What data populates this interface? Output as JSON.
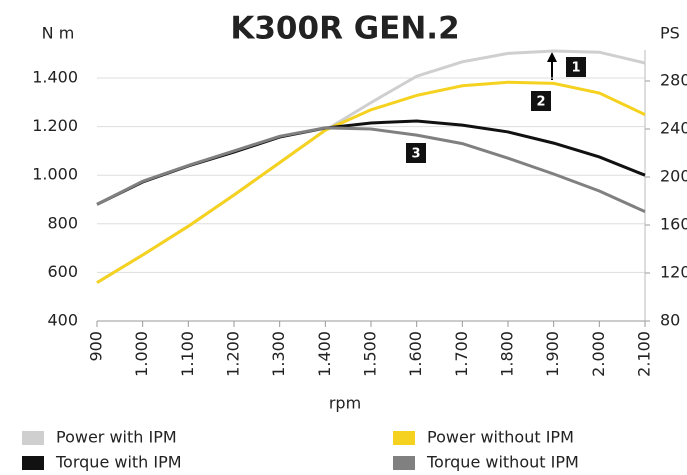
{
  "chart_data": {
    "type": "line",
    "title": "K300R GEN.2",
    "ylabel": "N m",
    "y2label": "PS",
    "xlabel": "rpm",
    "x": [
      900,
      1000,
      1100,
      1200,
      1300,
      1400,
      1500,
      1600,
      1700,
      1800,
      1900,
      2000,
      2100
    ],
    "xlim": [
      900,
      2100
    ],
    "xticks": [
      900,
      {
        "value": 1000,
        "label": "1.000"
      },
      {
        "value": 1100,
        "label": "1.100"
      },
      {
        "value": 1200,
        "label": "1.200"
      },
      {
        "value": 1300,
        "label": "1.300"
      },
      {
        "value": 1400,
        "label": "1.400"
      },
      {
        "value": 1500,
        "label": "1.500"
      },
      {
        "value": 1600,
        "label": "1.600"
      },
      {
        "value": 1700,
        "label": "1.700"
      },
      {
        "value": 1800,
        "label": "1.800"
      },
      {
        "value": 1900,
        "label": "1.900"
      },
      {
        "value": 2000,
        "label": "2.000"
      },
      {
        "value": 2100,
        "label": "2.100"
      }
    ],
    "ylim": [
      400,
      1550
    ],
    "yticks": [
      400,
      600,
      800,
      {
        "value": 1000,
        "label": "1.000"
      },
      {
        "value": 1200,
        "label": "1.200"
      },
      {
        "value": 1400,
        "label": "1.400"
      }
    ],
    "y2lim": [
      80,
      310
    ],
    "y2ticks": [
      80,
      120,
      160,
      200,
      240,
      280
    ],
    "grid": true,
    "series": [
      {
        "name": "Power with IPM",
        "color": "#cfcfcf",
        "axis": "y2",
        "values": [
          112,
          135,
          159,
          185,
          212,
          239,
          262,
          284,
          296,
          303,
          305,
          304,
          295
        ]
      },
      {
        "name": "Power without IPM",
        "color": "#f5d21f",
        "axis": "y2",
        "values": [
          112,
          135,
          159,
          185,
          212,
          239,
          256,
          268,
          276,
          279,
          278,
          270,
          252
        ]
      },
      {
        "name": "Torque with IPM",
        "color": "#111111",
        "values": [
          880,
          972,
          1038,
          1095,
          1157,
          1194,
          1215,
          1223,
          1206,
          1178,
          1132,
          1075,
          1000
        ]
      },
      {
        "name": "Torque without IPM",
        "color": "#808080",
        "values": [
          880,
          975,
          1040,
          1100,
          1160,
          1195,
          1190,
          1165,
          1130,
          1070,
          1005,
          935,
          850
        ]
      }
    ],
    "annotations": [
      "1",
      "2",
      "3"
    ]
  }
}
